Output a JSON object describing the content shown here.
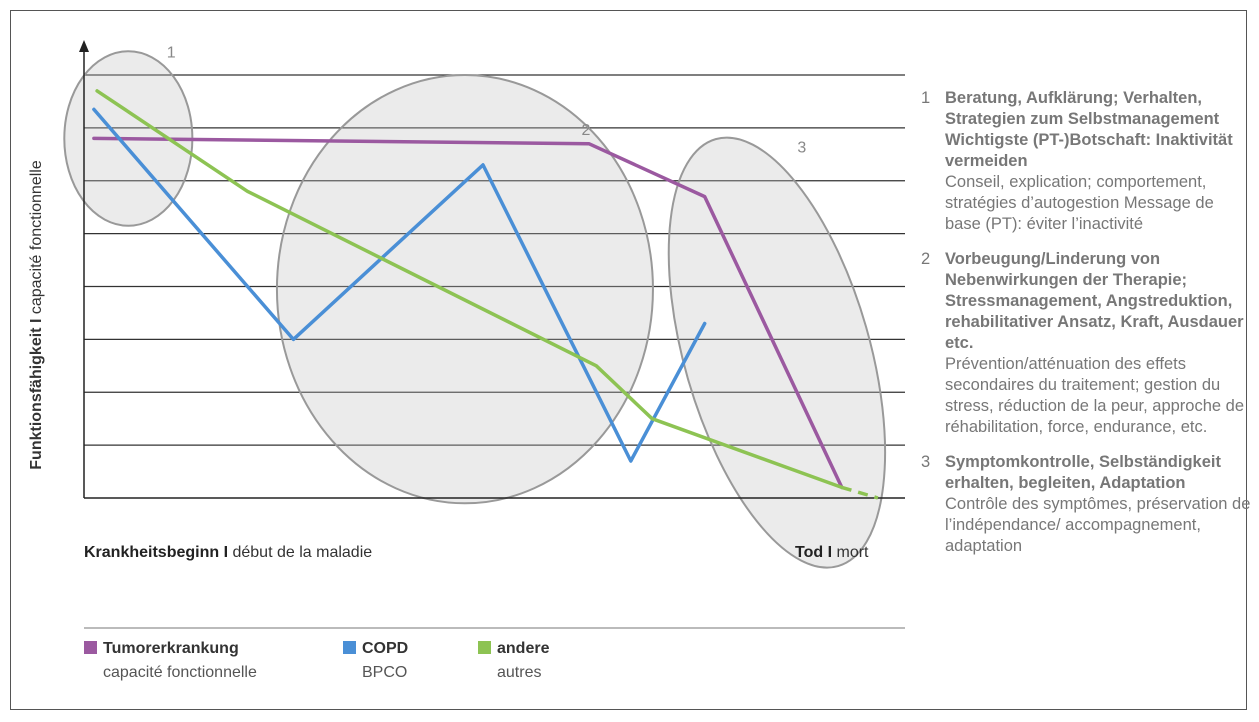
{
  "chart_data": {
    "type": "line",
    "ylabel_bold": "Funktionsfähigkeit I",
    "ylabel_rest": "capacité fonctionnelle",
    "xlabel_start_bold": "Krankheitsbeginn I",
    "xlabel_start_rest": "début de la maladie",
    "xlabel_end_bold": "Tod I",
    "xlabel_end_rest": "mort",
    "xlim": [
      0,
      100
    ],
    "ylim": [
      0,
      8
    ],
    "grid": true,
    "series": [
      {
        "name": "Tumorerkrankung",
        "name_fr": "capacité fonctionnelle",
        "color": "#9b59a0",
        "points": [
          [
            1.2,
            6.8
          ],
          [
            61.5,
            6.7
          ],
          [
            75.6,
            5.7
          ],
          [
            92.3,
            0.2
          ]
        ]
      },
      {
        "name": "COPD",
        "name_fr": "BPCO",
        "color": "#4a8fd6",
        "points": [
          [
            1.2,
            7.35
          ],
          [
            25.5,
            3.0
          ],
          [
            48.6,
            6.3
          ],
          [
            66.6,
            0.7
          ],
          [
            75.6,
            3.3
          ]
        ]
      },
      {
        "name": "andere",
        "name_fr": "autres",
        "color": "#8dc353",
        "points": [
          [
            1.6,
            7.7
          ],
          [
            19.9,
            5.8
          ],
          [
            62.4,
            2.5
          ],
          [
            69.2,
            1.5
          ],
          [
            92.3,
            0.2
          ]
        ]
      },
      {
        "name": "andere-dashed",
        "color": "#8dc353",
        "dashed": true,
        "points": [
          [
            92.3,
            0.2
          ],
          [
            96.7,
            0.0
          ]
        ]
      }
    ],
    "annotations": [
      {
        "label": "1",
        "cx": 5.4,
        "cy": 6.8,
        "rx": 7.8,
        "ry": 1.65
      },
      {
        "label": "2",
        "cx": 46.4,
        "cy": 3.95,
        "rx": 22.9,
        "ry": 4.05
      },
      {
        "label": "3",
        "cx": 84.4,
        "cy": 2.75,
        "rx": 11.3,
        "ry": 4.2,
        "rotate": -16
      }
    ]
  },
  "legend": [
    {
      "de": "Tumorerkrankung",
      "fr": "capacité fonctionnelle",
      "color": "#9b59a0"
    },
    {
      "de": "COPD",
      "fr": "BPCO",
      "color": "#4a8fd6"
    },
    {
      "de": "andere",
      "fr": "autres",
      "color": "#8dc353"
    }
  ],
  "notes": [
    {
      "num": "1",
      "de": "Beratung, Aufklärung; Verhalten, Strategien zum Selbstmanagement Wichtigste (PT-)Botschaft: Inaktivität vermeiden",
      "fr": "Conseil, explication; comportement, stratégies d’autogestion Message de base (PT): éviter l’inactivité"
    },
    {
      "num": "2",
      "de": "Vorbeugung/Linderung von Nebenwirkungen der Therapie; Stressmanagement, Angstreduktion, rehabilitativer Ansatz, Kraft, Ausdauer etc.",
      "fr": "Prévention/atténuation des effets secondaires du traitement; gestion du stress, réduction de la peur, approche de réhabilitation, force, endurance, etc."
    },
    {
      "num": "3",
      "de": "Symptomkontrolle, Selbständigkeit erhalten, begleiten, Adaptation",
      "fr": "Contrôle des symptômes, préservation de l’indépendance/ accompagnement, adaptation"
    }
  ]
}
